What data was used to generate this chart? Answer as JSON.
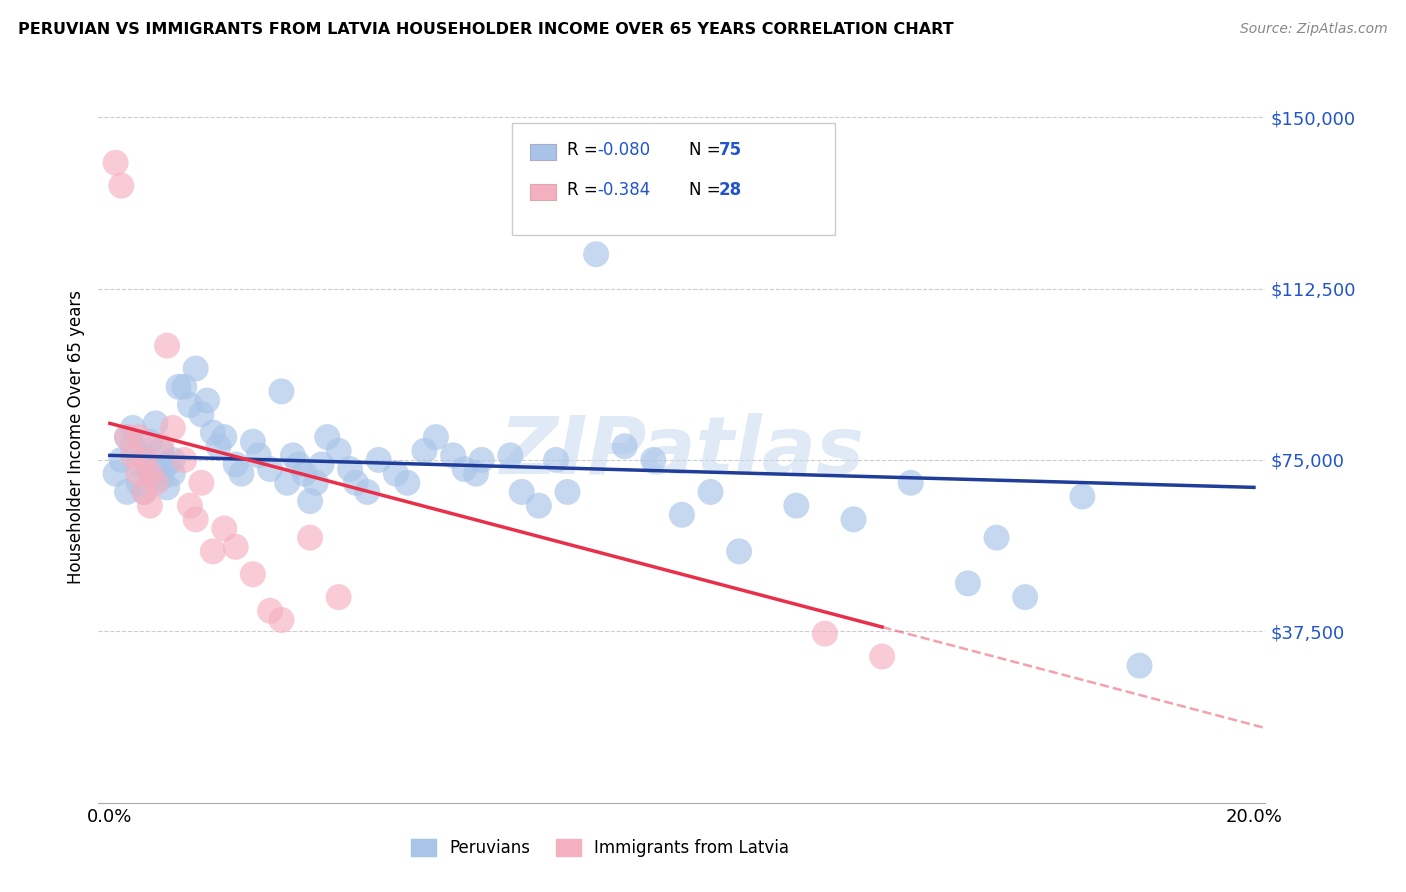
{
  "title": "PERUVIAN VS IMMIGRANTS FROM LATVIA HOUSEHOLDER INCOME OVER 65 YEARS CORRELATION CHART",
  "source": "Source: ZipAtlas.com",
  "ylabel": "Householder Income Over 65 years",
  "xlim": [
    -0.002,
    0.202
  ],
  "ylim": [
    0,
    160000
  ],
  "yticks": [
    0,
    37500,
    75000,
    112500,
    150000
  ],
  "ytick_labels": [
    "",
    "$37,500",
    "$75,000",
    "$112,500",
    "$150,000"
  ],
  "xticks": [
    0.0,
    0.05,
    0.1,
    0.15,
    0.2
  ],
  "xtick_labels": [
    "0.0%",
    "",
    "",
    "",
    "20.0%"
  ],
  "legend_blue_r": "R = -0.080",
  "legend_blue_n": "N = 75",
  "legend_pink_r": "R = -0.384",
  "legend_pink_n": "N = 28",
  "legend_label1": "Peruvians",
  "legend_label2": "Immigrants from Latvia",
  "blue_color": "#a8c4e8",
  "pink_color": "#f5b0c0",
  "blue_line_color": "#1f3d99",
  "pink_line_color": "#e8304a",
  "r_value_color": "#2255cc",
  "n_value_color": "#2255cc",
  "watermark": "ZIPatlas",
  "blue_x": [
    0.001,
    0.002,
    0.003,
    0.003,
    0.004,
    0.004,
    0.005,
    0.005,
    0.006,
    0.006,
    0.007,
    0.007,
    0.008,
    0.008,
    0.009,
    0.009,
    0.01,
    0.01,
    0.011,
    0.011,
    0.012,
    0.013,
    0.014,
    0.015,
    0.016,
    0.017,
    0.018,
    0.019,
    0.02,
    0.022,
    0.023,
    0.025,
    0.026,
    0.028,
    0.03,
    0.031,
    0.032,
    0.033,
    0.034,
    0.035,
    0.036,
    0.037,
    0.038,
    0.04,
    0.042,
    0.043,
    0.045,
    0.047,
    0.05,
    0.052,
    0.055,
    0.057,
    0.06,
    0.062,
    0.064,
    0.065,
    0.07,
    0.072,
    0.075,
    0.078,
    0.08,
    0.085,
    0.09,
    0.095,
    0.1,
    0.105,
    0.11,
    0.12,
    0.13,
    0.14,
    0.15,
    0.155,
    0.16,
    0.17,
    0.18
  ],
  "blue_y": [
    72000,
    75000,
    68000,
    80000,
    78000,
    82000,
    74000,
    70000,
    76000,
    68000,
    79000,
    72000,
    83000,
    73000,
    77000,
    71000,
    74000,
    69000,
    72000,
    75000,
    91000,
    91000,
    87000,
    95000,
    85000,
    88000,
    81000,
    78000,
    80000,
    74000,
    72000,
    79000,
    76000,
    73000,
    90000,
    70000,
    76000,
    74000,
    72000,
    66000,
    70000,
    74000,
    80000,
    77000,
    73000,
    70000,
    68000,
    75000,
    72000,
    70000,
    77000,
    80000,
    76000,
    73000,
    72000,
    75000,
    76000,
    68000,
    65000,
    75000,
    68000,
    120000,
    78000,
    75000,
    63000,
    68000,
    55000,
    65000,
    62000,
    70000,
    48000,
    58000,
    45000,
    67000,
    30000
  ],
  "pink_x": [
    0.001,
    0.002,
    0.003,
    0.004,
    0.005,
    0.005,
    0.006,
    0.006,
    0.007,
    0.007,
    0.008,
    0.009,
    0.01,
    0.011,
    0.013,
    0.014,
    0.015,
    0.016,
    0.018,
    0.02,
    0.022,
    0.025,
    0.028,
    0.03,
    0.035,
    0.04,
    0.125,
    0.135
  ],
  "pink_y": [
    140000,
    135000,
    80000,
    76000,
    80000,
    72000,
    68000,
    75000,
    72000,
    65000,
    70000,
    78000,
    100000,
    82000,
    75000,
    65000,
    62000,
    70000,
    55000,
    60000,
    56000,
    50000,
    42000,
    40000,
    58000,
    45000,
    37000,
    32000
  ]
}
